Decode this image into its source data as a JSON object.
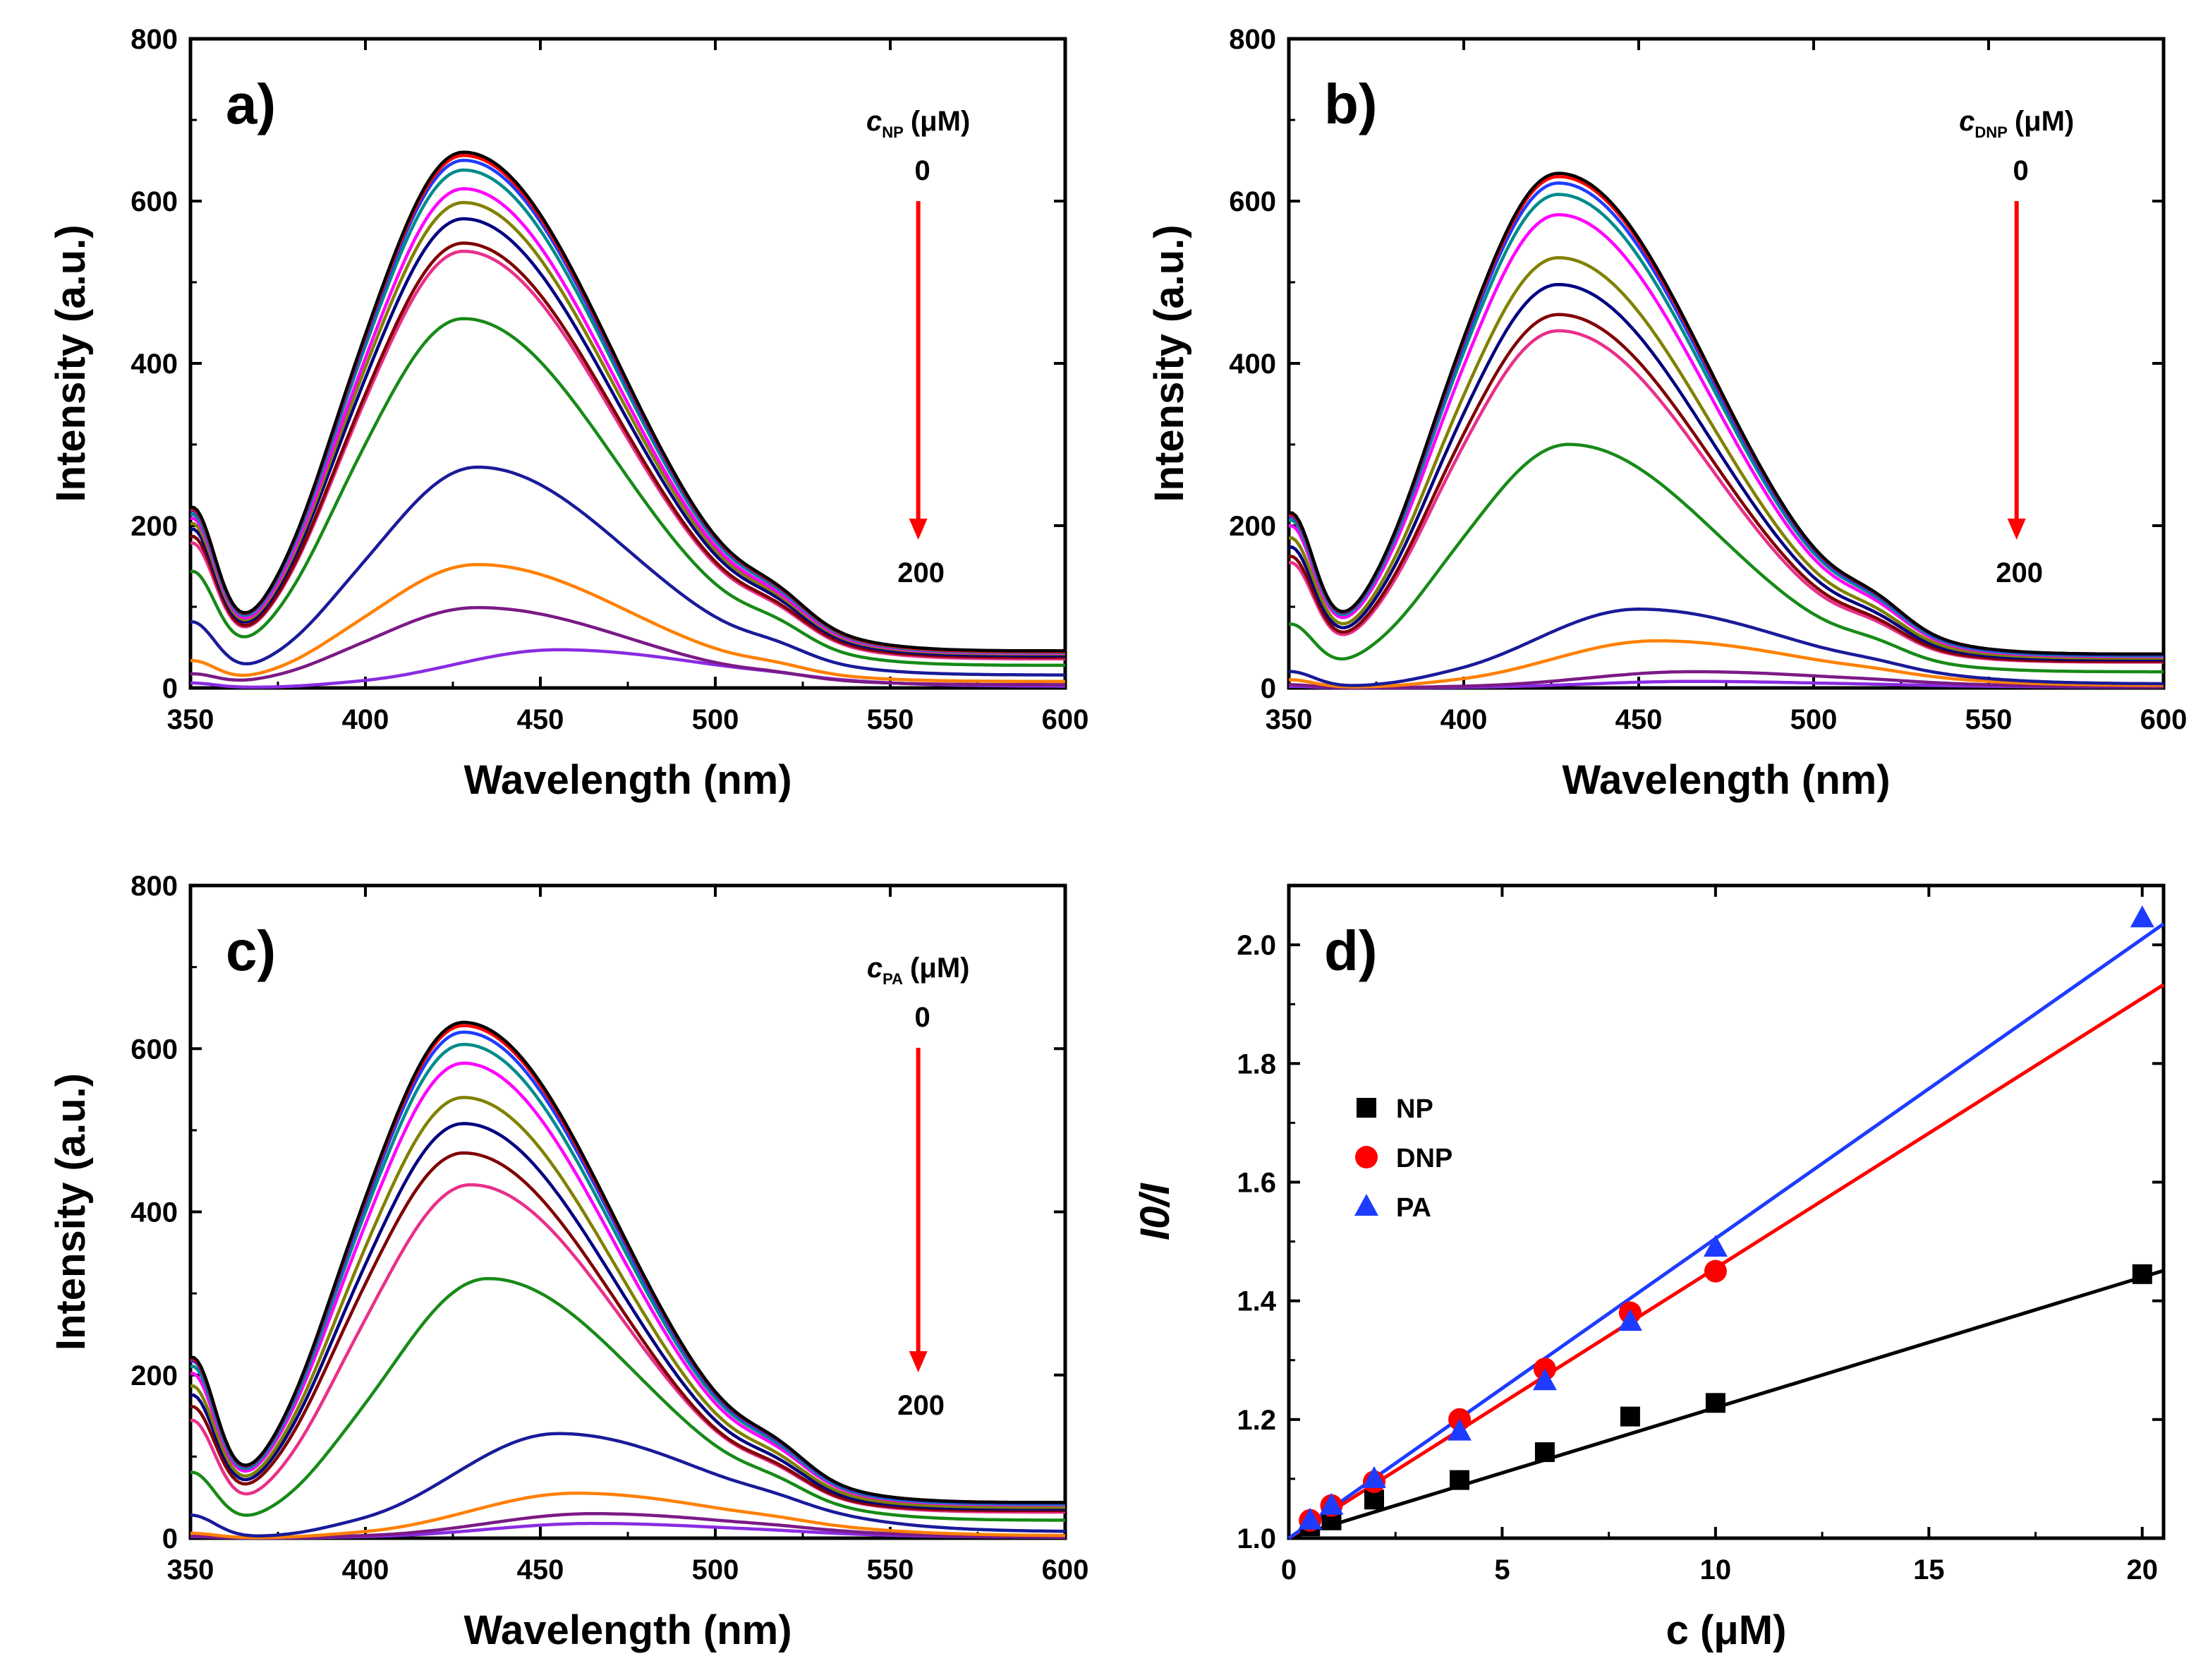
{
  "figure": {
    "panels": [
      "a)",
      "b)",
      "c)",
      "d)"
    ]
  },
  "chart_data": [
    {
      "panel": "a)",
      "type": "line",
      "xlabel": "Wavelength (nm)",
      "ylabel": "Intensity (a.u.)",
      "xlim": [
        350,
        600
      ],
      "ylim": [
        0,
        800
      ],
      "xticks": [
        350,
        400,
        450,
        500,
        550,
        600
      ],
      "yticks": [
        0,
        200,
        400,
        600,
        800
      ],
      "annotation": {
        "symbol": "c",
        "subscript": "NP",
        "unit": "(μM)",
        "start": "0",
        "end": "200"
      },
      "series": [
        {
          "name": "s1",
          "color": "#000000",
          "peak_wavelength": 428,
          "peak": 660,
          "baseline": 200,
          "tail": 46
        },
        {
          "name": "s2",
          "color": "#ff0000",
          "peak_wavelength": 428,
          "peak": 656,
          "baseline": 198,
          "tail": 45
        },
        {
          "name": "s3",
          "color": "#1e3cff",
          "peak_wavelength": 428,
          "peak": 650,
          "baseline": 196,
          "tail": 45
        },
        {
          "name": "s4",
          "color": "#008b8b",
          "peak_wavelength": 428,
          "peak": 638,
          "baseline": 192,
          "tail": 44
        },
        {
          "name": "s5",
          "color": "#ff00ff",
          "peak_wavelength": 428,
          "peak": 615,
          "baseline": 188,
          "tail": 43
        },
        {
          "name": "s6",
          "color": "#808000",
          "peak_wavelength": 428,
          "peak": 598,
          "baseline": 182,
          "tail": 42
        },
        {
          "name": "s7",
          "color": "#000080",
          "peak_wavelength": 428,
          "peak": 578,
          "baseline": 176,
          "tail": 40
        },
        {
          "name": "s8",
          "color": "#800000",
          "peak_wavelength": 428,
          "peak": 548,
          "baseline": 168,
          "tail": 38
        },
        {
          "name": "s9",
          "color": "#e8308a",
          "peak_wavelength": 428,
          "peak": 538,
          "baseline": 160,
          "tail": 36
        },
        {
          "name": "s10",
          "color": "#178a17",
          "peak_wavelength": 428,
          "peak": 455,
          "baseline": 128,
          "tail": 28
        },
        {
          "name": "s11",
          "color": "#1a1a9a",
          "peak_wavelength": 432,
          "peak": 272,
          "baseline": 75,
          "tail": 16
        },
        {
          "name": "s12",
          "color": "#ff8000",
          "peak_wavelength": 432,
          "peak": 152,
          "baseline": 30,
          "tail": 8
        },
        {
          "name": "s13",
          "color": "#7b1a86",
          "peak_wavelength": 432,
          "peak": 99,
          "baseline": 15,
          "tail": 4
        },
        {
          "name": "s14",
          "color": "#8a2be2",
          "peak_wavelength": 455,
          "peak": 47,
          "baseline": 6,
          "tail": 2
        }
      ]
    },
    {
      "panel": "b)",
      "type": "line",
      "xlabel": "Wavelength (nm)",
      "ylabel": "Intensity (a.u.)",
      "xlim": [
        350,
        600
      ],
      "ylim": [
        0,
        800
      ],
      "xticks": [
        350,
        400,
        450,
        500,
        550,
        600
      ],
      "yticks": [
        0,
        200,
        400,
        600,
        800
      ],
      "annotation": {
        "symbol": "c",
        "subscript": "DNP",
        "unit": "(μM)",
        "start": "0",
        "end": "200"
      },
      "series": [
        {
          "name": "s1",
          "color": "#000000",
          "peak_wavelength": 427,
          "peak": 634,
          "baseline": 192,
          "tail": 42
        },
        {
          "name": "s2",
          "color": "#ff0000",
          "peak_wavelength": 427,
          "peak": 630,
          "baseline": 190,
          "tail": 42
        },
        {
          "name": "s3",
          "color": "#1e3cff",
          "peak_wavelength": 427,
          "peak": 622,
          "baseline": 188,
          "tail": 41
        },
        {
          "name": "s4",
          "color": "#008b8b",
          "peak_wavelength": 427,
          "peak": 608,
          "baseline": 184,
          "tail": 40
        },
        {
          "name": "s5",
          "color": "#ff00ff",
          "peak_wavelength": 427,
          "peak": 583,
          "baseline": 178,
          "tail": 39
        },
        {
          "name": "s6",
          "color": "#808000",
          "peak_wavelength": 427,
          "peak": 530,
          "baseline": 165,
          "tail": 37
        },
        {
          "name": "s7",
          "color": "#000080",
          "peak_wavelength": 427,
          "peak": 497,
          "baseline": 155,
          "tail": 35
        },
        {
          "name": "s8",
          "color": "#800000",
          "peak_wavelength": 427,
          "peak": 460,
          "baseline": 145,
          "tail": 33
        },
        {
          "name": "s9",
          "color": "#e8308a",
          "peak_wavelength": 427,
          "peak": 440,
          "baseline": 138,
          "tail": 32
        },
        {
          "name": "s10",
          "color": "#178a17",
          "peak_wavelength": 430,
          "peak": 300,
          "baseline": 70,
          "tail": 20
        },
        {
          "name": "s11",
          "color": "#1a1a9a",
          "peak_wavelength": 450,
          "peak": 97,
          "baseline": 20,
          "tail": 5
        },
        {
          "name": "s12",
          "color": "#ff8000",
          "peak_wavelength": 455,
          "peak": 58,
          "baseline": 10,
          "tail": 3
        },
        {
          "name": "s13",
          "color": "#7b1a86",
          "peak_wavelength": 465,
          "peak": 20,
          "baseline": 4,
          "tail": 1
        },
        {
          "name": "s14",
          "color": "#8a2be2",
          "peak_wavelength": 465,
          "peak": 8,
          "baseline": 2,
          "tail": 1
        }
      ]
    },
    {
      "panel": "c)",
      "type": "line",
      "xlabel": "Wavelength (nm)",
      "ylabel": "Intensity (a.u.)",
      "xlim": [
        350,
        600
      ],
      "ylim": [
        0,
        800
      ],
      "xticks": [
        350,
        400,
        450,
        500,
        550,
        600
      ],
      "yticks": [
        0,
        200,
        400,
        600,
        800
      ],
      "annotation": {
        "symbol": "c",
        "subscript": "PA",
        "unit": "(μM)",
        "start": "0",
        "end": "200"
      },
      "series": [
        {
          "name": "s1",
          "color": "#000000",
          "peak_wavelength": 428,
          "peak": 632,
          "baseline": 200,
          "tail": 44
        },
        {
          "name": "s2",
          "color": "#ff0000",
          "peak_wavelength": 428,
          "peak": 628,
          "baseline": 198,
          "tail": 44
        },
        {
          "name": "s3",
          "color": "#1e3cff",
          "peak_wavelength": 428,
          "peak": 620,
          "baseline": 196,
          "tail": 43
        },
        {
          "name": "s4",
          "color": "#008b8b",
          "peak_wavelength": 428,
          "peak": 605,
          "baseline": 190,
          "tail": 42
        },
        {
          "name": "s5",
          "color": "#ff00ff",
          "peak_wavelength": 428,
          "peak": 582,
          "baseline": 182,
          "tail": 41
        },
        {
          "name": "s6",
          "color": "#808000",
          "peak_wavelength": 428,
          "peak": 540,
          "baseline": 168,
          "tail": 38
        },
        {
          "name": "s7",
          "color": "#000080",
          "peak_wavelength": 428,
          "peak": 508,
          "baseline": 158,
          "tail": 36
        },
        {
          "name": "s8",
          "color": "#800000",
          "peak_wavelength": 428,
          "peak": 472,
          "baseline": 145,
          "tail": 34
        },
        {
          "name": "s9",
          "color": "#e8308a",
          "peak_wavelength": 430,
          "peak": 433,
          "baseline": 132,
          "tail": 32
        },
        {
          "name": "s10",
          "color": "#178a17",
          "peak_wavelength": 435,
          "peak": 318,
          "baseline": 75,
          "tail": 22
        },
        {
          "name": "s11",
          "color": "#1a1a9a",
          "peak_wavelength": 455,
          "peak": 128,
          "baseline": 28,
          "tail": 8
        },
        {
          "name": "s12",
          "color": "#ff8000",
          "peak_wavelength": 460,
          "peak": 55,
          "baseline": 6,
          "tail": 3
        },
        {
          "name": "s13",
          "color": "#7b1a86",
          "peak_wavelength": 465,
          "peak": 30,
          "baseline": 3,
          "tail": 1
        },
        {
          "name": "s14",
          "color": "#8a2be2",
          "peak_wavelength": 465,
          "peak": 18,
          "baseline": 2,
          "tail": 1
        }
      ]
    },
    {
      "panel": "d)",
      "type": "scatter",
      "xlabel": "c (μM)",
      "ylabel": "I0/I",
      "xlim": [
        0,
        20.5
      ],
      "ylim": [
        1.0,
        2.1
      ],
      "xticks": [
        0,
        5,
        10,
        15,
        20
      ],
      "yticks": [
        1.0,
        1.2,
        1.4,
        1.6,
        1.8,
        2.0
      ],
      "legend": {
        "position": "upper-left",
        "entries": [
          "NP",
          "DNP",
          "PA"
        ]
      },
      "series": [
        {
          "name": "NP",
          "color": "#000000",
          "marker": "square",
          "x": [
            0,
            0.5,
            1,
            2,
            4,
            6,
            8,
            10,
            20
          ],
          "y": [
            1.0,
            1.02,
            1.03,
            1.065,
            1.098,
            1.145,
            1.205,
            1.228,
            1.445
          ],
          "fit": {
            "slope": 0.022,
            "intercept": 1.0,
            "x_end": 20.5
          }
        },
        {
          "name": "DNP",
          "color": "#ff0000",
          "marker": "circle",
          "x": [
            0,
            0.5,
            1,
            2,
            4,
            6,
            8,
            10
          ],
          "y": [
            1.0,
            1.03,
            1.055,
            1.095,
            1.2,
            1.285,
            1.38,
            1.45
          ],
          "fit": {
            "slope": 0.0455,
            "intercept": 1.0,
            "x_end": 20.5
          }
        },
        {
          "name": "PA",
          "color": "#1e3cff",
          "marker": "triangle",
          "x": [
            0,
            0.5,
            1,
            2,
            4,
            6,
            8,
            10,
            20
          ],
          "y": [
            1.0,
            1.03,
            1.055,
            1.1,
            1.18,
            1.265,
            1.365,
            1.49,
            2.045
          ],
          "fit": {
            "slope": 0.0505,
            "intercept": 1.0,
            "x_end": 20.5
          }
        }
      ]
    }
  ]
}
